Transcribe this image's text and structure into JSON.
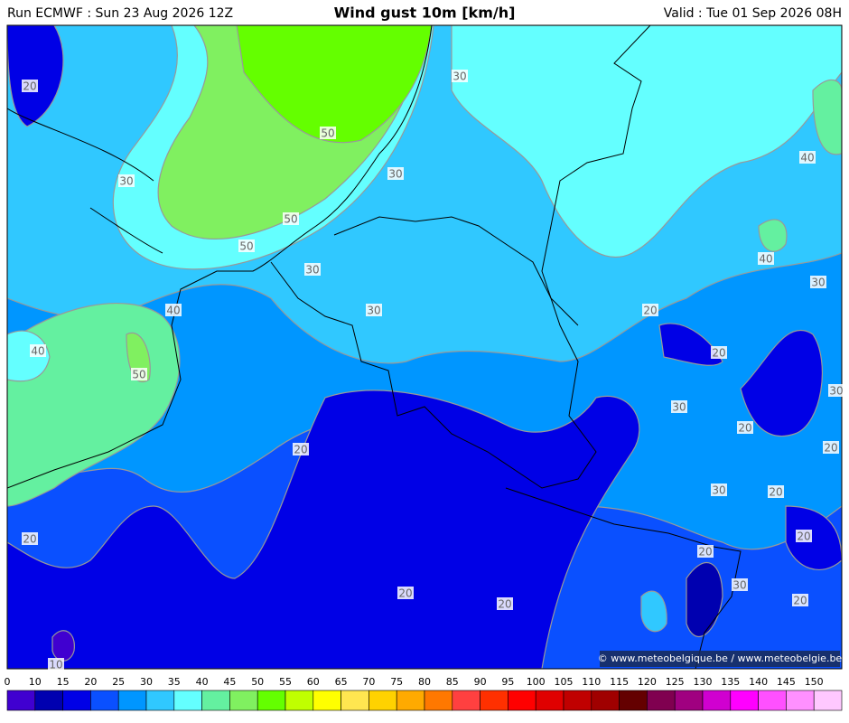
{
  "header": {
    "run": "Run ECMWF : Sun 23 Aug 2026 12Z",
    "title": "Wind gust 10m [km/h]",
    "valid": "Valid : Tue 01 Sep 2026 08H"
  },
  "map": {
    "contour_labels": [
      20,
      30,
      50,
      30,
      30,
      40,
      50,
      50,
      30,
      40,
      30,
      40,
      30,
      20,
      40,
      50,
      20,
      30,
      30,
      20,
      20,
      20,
      30,
      20,
      20,
      20,
      20,
      30,
      20,
      20,
      20,
      10
    ],
    "copyright": "© www.meteobelgique.be / www.meteobelgie.be"
  },
  "colorbar": {
    "ticks": [
      0,
      10,
      15,
      20,
      25,
      30,
      35,
      40,
      45,
      50,
      55,
      60,
      65,
      70,
      75,
      80,
      85,
      90,
      95,
      100,
      105,
      110,
      115,
      120,
      125,
      130,
      135,
      140,
      145,
      150
    ],
    "colors": [
      "#4000d0",
      "#0000b0",
      "#0000e6",
      "#0a50ff",
      "#0096ff",
      "#30c8ff",
      "#64ffff",
      "#64f0a0",
      "#80f060",
      "#64ff00",
      "#c0ff00",
      "#ffff00",
      "#ffe650",
      "#ffd200",
      "#ffaa00",
      "#ff7800",
      "#ff4040",
      "#ff3000",
      "#ff0000",
      "#e00000",
      "#c00000",
      "#a00000",
      "#640000",
      "#800050",
      "#a00080",
      "#d000d0",
      "#ff00ff",
      "#ff50ff",
      "#ff90ff",
      "#ffc8ff"
    ]
  }
}
